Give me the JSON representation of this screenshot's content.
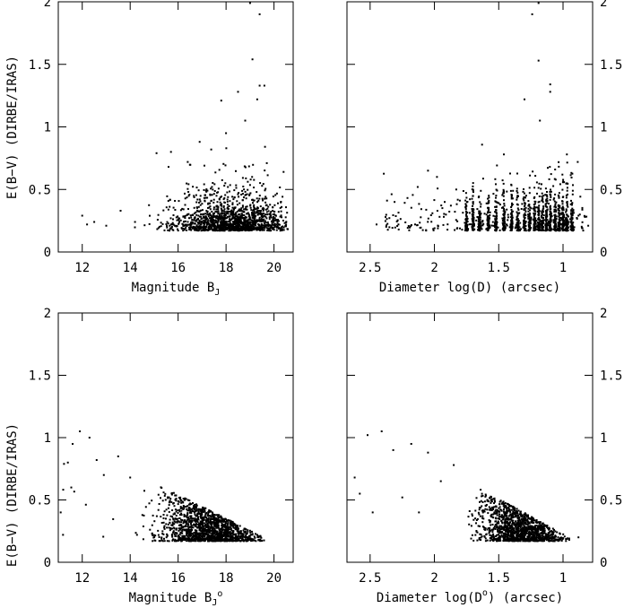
{
  "ylabel": "E(B−V) (DIRBE/IRAS)",
  "chart_data": [
    {
      "type": "scatter",
      "xlabel": "Magnitude B",
      "xlabel_sub": "J",
      "ylim": [
        0,
        2
      ],
      "xlim": [
        11,
        20.8
      ],
      "xticks": [
        "12",
        "14",
        "16",
        "18",
        "20"
      ],
      "yticks": [
        "0",
        "0.5",
        "1",
        "1.5",
        "2"
      ],
      "yticks_side": "left",
      "grid": false,
      "cluster": {
        "cx": 18.2,
        "sx": 1.2,
        "xmin": 13,
        "xmax": 20.6,
        "ymin": 0.17,
        "n": 1500,
        "decay": 0.1
      },
      "outliers": [
        [
          12.0,
          0.29
        ],
        [
          12.2,
          0.22
        ],
        [
          12.5,
          0.24
        ],
        [
          13.0,
          0.21
        ],
        [
          13.6,
          0.33
        ],
        [
          14.2,
          0.24
        ],
        [
          15.1,
          0.79
        ],
        [
          15.6,
          0.68
        ],
        [
          15.7,
          0.8
        ],
        [
          16.4,
          0.72
        ],
        [
          16.9,
          0.88
        ],
        [
          17.8,
          1.21
        ],
        [
          18.0,
          0.95
        ],
        [
          18.5,
          1.28
        ],
        [
          18.8,
          1.05
        ],
        [
          19.1,
          1.54
        ],
        [
          19.3,
          1.22
        ],
        [
          19.4,
          1.33
        ],
        [
          19.6,
          1.33
        ],
        [
          19.4,
          1.9
        ],
        [
          19.0,
          1.99
        ],
        [
          20.4,
          0.64
        ]
      ]
    },
    {
      "type": "scatter",
      "xlabel": "Diameter log(D) (arcsec)",
      "ylim": [
        0,
        2
      ],
      "xlim": [
        2.68,
        0.77
      ],
      "xticks": [
        "2.5",
        "2",
        "1.5",
        "1"
      ],
      "yticks": [
        "0",
        "0.5",
        "1",
        "1.5",
        "2"
      ],
      "yticks_side": "right",
      "grid": false,
      "columns": [
        1.75,
        1.7,
        1.65,
        1.58,
        1.52,
        1.46,
        1.4,
        1.35,
        1.3,
        1.26,
        1.22,
        1.19,
        1.16,
        1.13,
        1.1,
        1.06,
        1.03,
        1.0,
        0.97,
        0.93
      ],
      "columns_n": 70,
      "outliers": [
        [
          2.45,
          0.22
        ],
        [
          2.38,
          0.28
        ],
        [
          2.31,
          0.4
        ],
        [
          2.28,
          0.22
        ],
        [
          2.13,
          0.52
        ],
        [
          2.05,
          0.65
        ],
        [
          1.98,
          0.6
        ],
        [
          1.92,
          0.4
        ],
        [
          1.83,
          0.5
        ],
        [
          1.46,
          0.78
        ],
        [
          1.3,
          1.22
        ],
        [
          1.19,
          1.53
        ],
        [
          1.19,
          1.99
        ],
        [
          1.24,
          1.9
        ],
        [
          1.18,
          1.05
        ],
        [
          1.1,
          1.34
        ],
        [
          1.1,
          1.28
        ],
        [
          0.97,
          0.78
        ],
        [
          0.87,
          0.3
        ],
        [
          0.83,
          0.28
        ]
      ]
    },
    {
      "type": "scatter",
      "xlabel": "Magnitude B",
      "xlabel_sub": "J",
      "xlabel_sup": "o",
      "ylim": [
        0,
        2
      ],
      "xlim": [
        11,
        20.8
      ],
      "xticks": [
        "12",
        "14",
        "16",
        "18",
        "20"
      ],
      "yticks": [
        "0",
        "0.5",
        "1",
        "1.5",
        "2"
      ],
      "yticks_side": "left",
      "grid": false,
      "band": {
        "x0": 11.2,
        "x1": 19.6,
        "ytop0": 1.0,
        "ytop1": 0.2,
        "ymin": 0.17,
        "n": 1500,
        "centre": 17.2,
        "spread": 1.6
      },
      "outliers": [
        [
          11.1,
          0.4
        ],
        [
          11.2,
          0.22
        ],
        [
          11.4,
          0.8
        ],
        [
          11.6,
          0.95
        ],
        [
          11.9,
          1.05
        ],
        [
          12.3,
          1.0
        ],
        [
          12.6,
          0.82
        ],
        [
          12.9,
          0.7
        ],
        [
          13.5,
          0.85
        ],
        [
          14.0,
          0.68
        ]
      ]
    },
    {
      "type": "scatter",
      "xlabel": "Diameter log(D",
      "xlabel_sup": "o",
      "xlabel_tail": ") (arcsec)",
      "ylim": [
        0,
        2
      ],
      "xlim": [
        2.68,
        0.77
      ],
      "xticks": [
        "2.5",
        "2",
        "1.5",
        "1"
      ],
      "yticks": [
        "0",
        "0.5",
        "1",
        "1.5",
        "2"
      ],
      "yticks_side": "right",
      "grid": false,
      "band": {
        "x0": 1.75,
        "x1": 0.95,
        "ytop0": 0.65,
        "ytop1": 0.2,
        "ymin": 0.17,
        "n": 1300,
        "centre": 1.35,
        "spread": 0.25
      },
      "outliers": [
        [
          2.62,
          0.68
        ],
        [
          2.58,
          0.55
        ],
        [
          2.52,
          1.02
        ],
        [
          2.48,
          0.4
        ],
        [
          2.41,
          1.05
        ],
        [
          2.32,
          0.9
        ],
        [
          2.18,
          0.95
        ],
        [
          2.05,
          0.88
        ],
        [
          1.95,
          0.65
        ],
        [
          1.85,
          0.78
        ],
        [
          2.25,
          0.52
        ],
        [
          2.12,
          0.4
        ],
        [
          0.88,
          0.2
        ]
      ]
    }
  ]
}
